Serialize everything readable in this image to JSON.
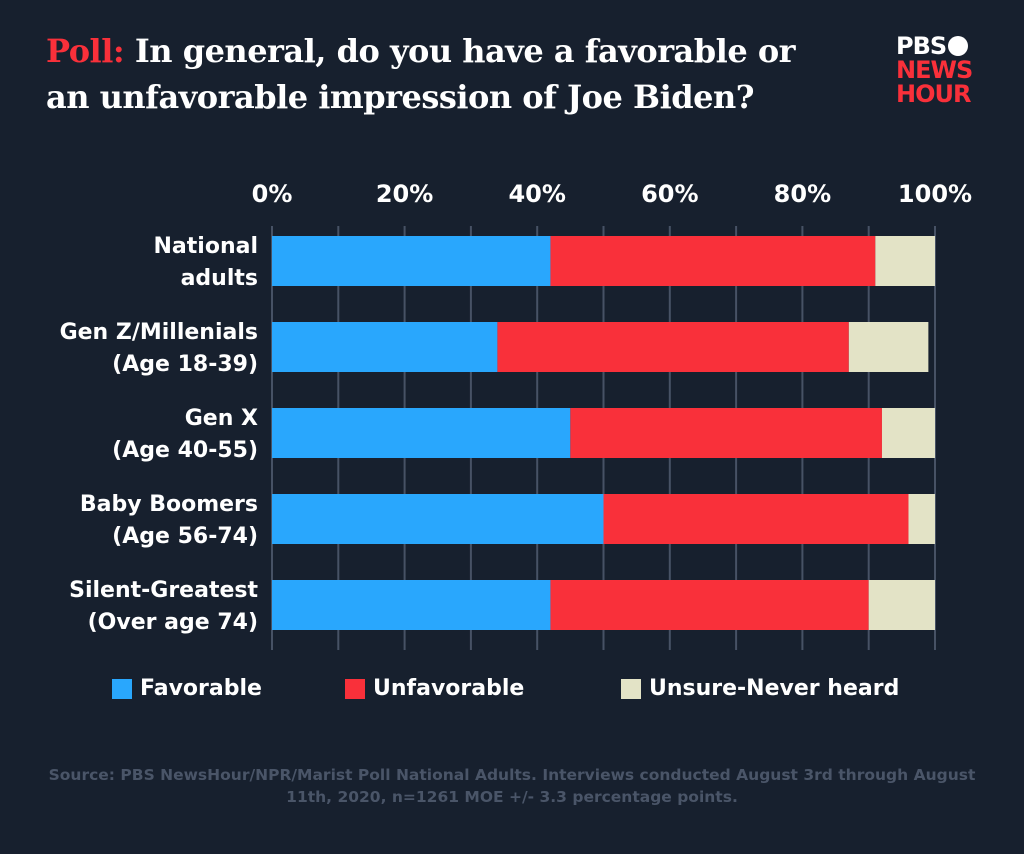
{
  "title": {
    "kicker": "Poll:",
    "text": "In general, do you have a favorable or an unfavorable impression of Joe Biden?"
  },
  "logo": {
    "line1": "PBS",
    "line2": "NEWS",
    "line3": "HOUR"
  },
  "source": "Source: PBS NewsHour/NPR/Marist Poll National Adults. Interviews conducted August 3rd through August 11th, 2020, n=1261 MOE +/- 3.3 percentage points.",
  "colors": {
    "background": "#17202e",
    "favorable": "#29a7fd",
    "unfavorable": "#f9303a",
    "unsure": "#e3e3c6",
    "grid": "#475265"
  },
  "chart_data": {
    "type": "bar",
    "orientation": "horizontal",
    "stacked": true,
    "categories": [
      [
        "National",
        "adults"
      ],
      [
        "Gen Z/Millenials",
        "(Age 18-39)"
      ],
      [
        "Gen X",
        "(Age 40-55)"
      ],
      [
        "Baby Boomers",
        "(Age 56-74)"
      ],
      [
        "Silent-Greatest",
        "(Over age 74)"
      ]
    ],
    "series": [
      {
        "name": "Favorable",
        "values": [
          42,
          34,
          45,
          50,
          42
        ]
      },
      {
        "name": "Unfavorable",
        "values": [
          49,
          53,
          47,
          46,
          48
        ]
      },
      {
        "name": "Unsure-Never heard",
        "values": [
          9,
          12,
          8,
          4,
          10
        ]
      }
    ],
    "xlim": [
      0,
      100
    ],
    "xticks": [
      "0%",
      "20%",
      "40%",
      "60%",
      "80%",
      "100%"
    ],
    "grid": true,
    "legend": "bottom"
  }
}
